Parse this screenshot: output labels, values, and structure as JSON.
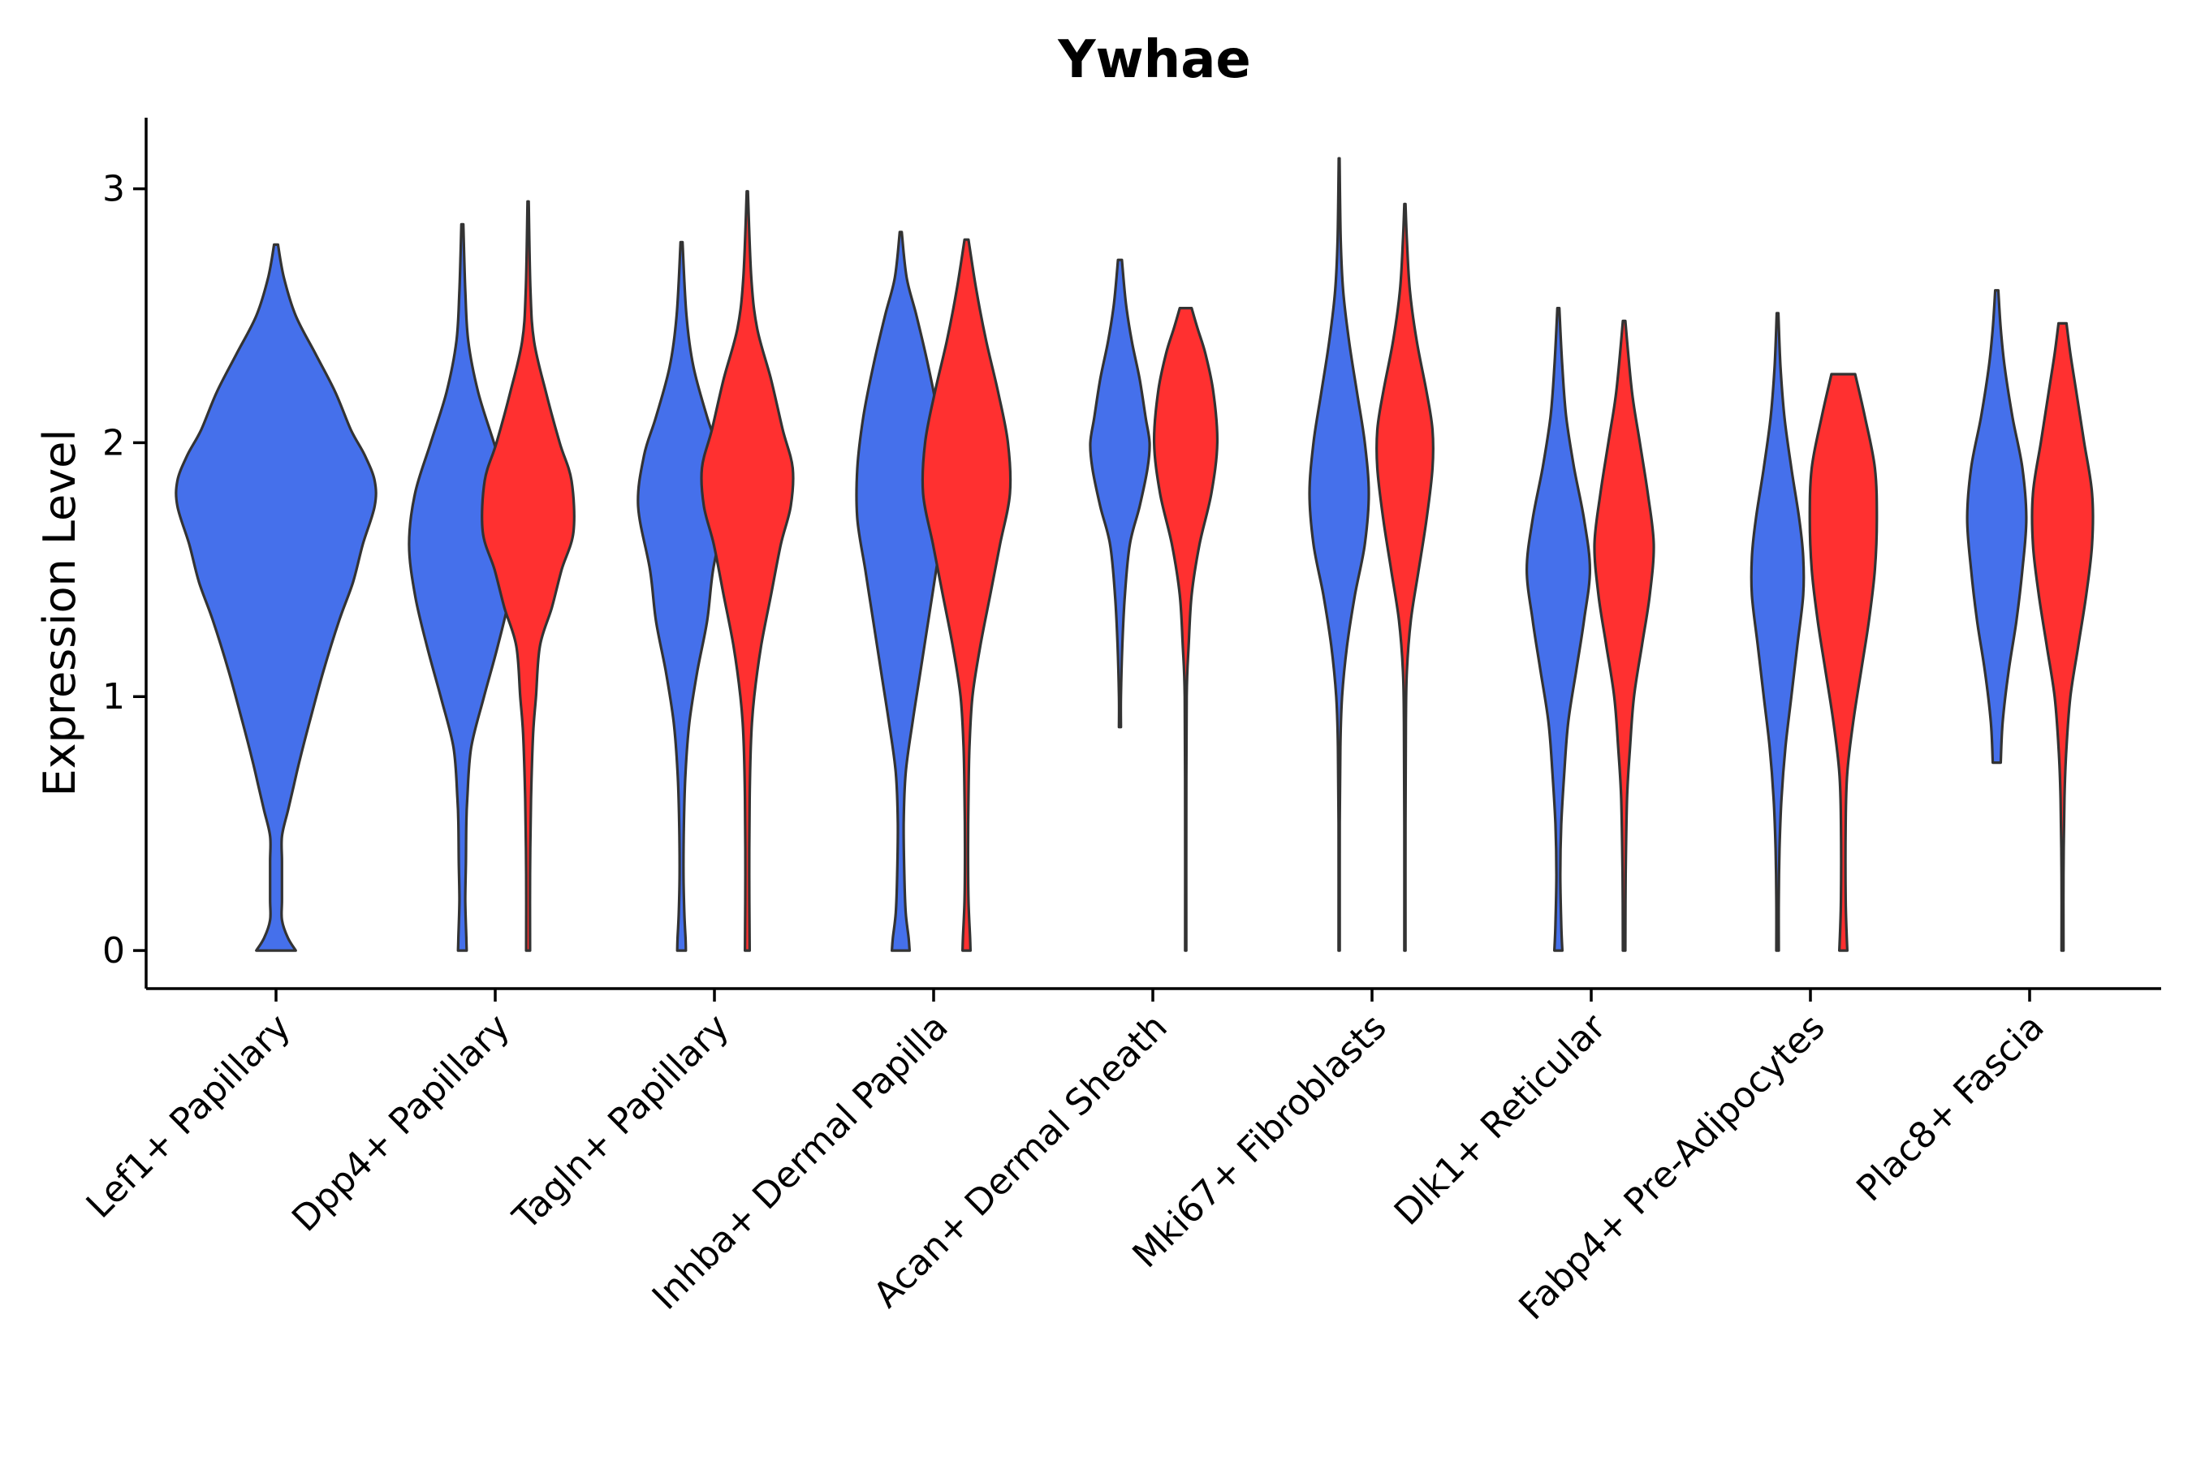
{
  "chart_data": {
    "type": "violin",
    "title": "Ywhae",
    "xlabel": "",
    "ylabel": "Expression Level",
    "ylim": [
      -0.15,
      3.28
    ],
    "yticks": [
      0,
      1,
      2,
      3
    ],
    "grid": false,
    "categories": [
      "Lef1+ Papillary",
      "Dpp4+ Papillary",
      "Tagln+ Papillary",
      "Inhba+ Dermal Papilla",
      "Acan+ Dermal Sheath",
      "Mki67+ Fibroblasts",
      "Dlk1+ Reticular",
      "Fabp4+ Pre-Adipocytes",
      "Plac8+ Fascia"
    ],
    "series_colors": {
      "blue": "#4570EB",
      "red": "#FF3030"
    },
    "outline_color": "#333333",
    "violins": [
      {
        "category": "Lef1+ Papillary",
        "color": "blue",
        "offset": 0,
        "profile": [
          [
            0.0,
            0.1
          ],
          [
            0.05,
            0.06
          ],
          [
            0.12,
            0.03
          ],
          [
            0.2,
            0.03
          ],
          [
            0.35,
            0.03
          ],
          [
            0.45,
            0.03
          ],
          [
            0.55,
            0.06
          ],
          [
            0.65,
            0.09
          ],
          [
            0.75,
            0.12
          ],
          [
            0.9,
            0.17
          ],
          [
            1.1,
            0.24
          ],
          [
            1.3,
            0.32
          ],
          [
            1.45,
            0.39
          ],
          [
            1.6,
            0.44
          ],
          [
            1.75,
            0.5
          ],
          [
            1.85,
            0.5
          ],
          [
            1.95,
            0.45
          ],
          [
            2.05,
            0.38
          ],
          [
            2.2,
            0.3
          ],
          [
            2.35,
            0.2
          ],
          [
            2.5,
            0.1
          ],
          [
            2.65,
            0.04
          ],
          [
            2.78,
            0.01
          ]
        ]
      },
      {
        "category": "Dpp4+ Papillary",
        "color": "blue",
        "offset": -0.15,
        "profile": [
          [
            0.0,
            0.022
          ],
          [
            0.05,
            0.02
          ],
          [
            0.2,
            0.015
          ],
          [
            0.35,
            0.018
          ],
          [
            0.5,
            0.02
          ],
          [
            0.6,
            0.025
          ],
          [
            0.8,
            0.045
          ],
          [
            1.0,
            0.11
          ],
          [
            1.2,
            0.18
          ],
          [
            1.4,
            0.24
          ],
          [
            1.6,
            0.27
          ],
          [
            1.8,
            0.24
          ],
          [
            2.0,
            0.16
          ],
          [
            2.2,
            0.08
          ],
          [
            2.4,
            0.03
          ],
          [
            2.6,
            0.015
          ],
          [
            2.86,
            0.005
          ]
        ]
      },
      {
        "category": "Dpp4+ Papillary",
        "color": "red",
        "offset": 0.15,
        "profile": [
          [
            0.0,
            0.01
          ],
          [
            0.3,
            0.01
          ],
          [
            0.6,
            0.015
          ],
          [
            0.85,
            0.025
          ],
          [
            1.0,
            0.04
          ],
          [
            1.2,
            0.06
          ],
          [
            1.35,
            0.12
          ],
          [
            1.5,
            0.17
          ],
          [
            1.65,
            0.23
          ],
          [
            1.85,
            0.22
          ],
          [
            2.0,
            0.16
          ],
          [
            2.2,
            0.09
          ],
          [
            2.4,
            0.03
          ],
          [
            2.6,
            0.012
          ],
          [
            2.95,
            0.003
          ]
        ]
      },
      {
        "category": "Tagln+ Papillary",
        "color": "blue",
        "offset": -0.15,
        "profile": [
          [
            0.0,
            0.022
          ],
          [
            0.05,
            0.02
          ],
          [
            0.15,
            0.014
          ],
          [
            0.3,
            0.01
          ],
          [
            0.5,
            0.012
          ],
          [
            0.7,
            0.02
          ],
          [
            0.9,
            0.04
          ],
          [
            1.1,
            0.08
          ],
          [
            1.3,
            0.13
          ],
          [
            1.5,
            0.16
          ],
          [
            1.75,
            0.22
          ],
          [
            1.95,
            0.19
          ],
          [
            2.1,
            0.13
          ],
          [
            2.3,
            0.06
          ],
          [
            2.5,
            0.025
          ],
          [
            2.79,
            0.005
          ]
        ]
      },
      {
        "category": "Tagln+ Papillary",
        "color": "red",
        "offset": 0.15,
        "profile": [
          [
            0.0,
            0.012
          ],
          [
            0.3,
            0.01
          ],
          [
            0.6,
            0.012
          ],
          [
            0.85,
            0.02
          ],
          [
            1.0,
            0.035
          ],
          [
            1.2,
            0.07
          ],
          [
            1.4,
            0.12
          ],
          [
            1.6,
            0.17
          ],
          [
            1.75,
            0.22
          ],
          [
            1.9,
            0.23
          ],
          [
            2.05,
            0.18
          ],
          [
            2.25,
            0.12
          ],
          [
            2.45,
            0.05
          ],
          [
            2.65,
            0.02
          ],
          [
            2.99,
            0.003
          ]
        ]
      },
      {
        "category": "Inhba+ Dermal Papilla",
        "color": "blue",
        "offset": -0.15,
        "profile": [
          [
            0.0,
            0.045
          ],
          [
            0.05,
            0.04
          ],
          [
            0.15,
            0.025
          ],
          [
            0.3,
            0.018
          ],
          [
            0.5,
            0.015
          ],
          [
            0.7,
            0.025
          ],
          [
            0.9,
            0.06
          ],
          [
            1.1,
            0.1
          ],
          [
            1.3,
            0.14
          ],
          [
            1.5,
            0.18
          ],
          [
            1.7,
            0.22
          ],
          [
            1.9,
            0.22
          ],
          [
            2.1,
            0.19
          ],
          [
            2.3,
            0.14
          ],
          [
            2.5,
            0.08
          ],
          [
            2.65,
            0.03
          ],
          [
            2.83,
            0.005
          ]
        ]
      },
      {
        "category": "Inhba+ Dermal Papilla",
        "color": "red",
        "offset": 0.15,
        "profile": [
          [
            0.0,
            0.02
          ],
          [
            0.05,
            0.018
          ],
          [
            0.2,
            0.01
          ],
          [
            0.4,
            0.008
          ],
          [
            0.6,
            0.01
          ],
          [
            0.8,
            0.015
          ],
          [
            1.0,
            0.03
          ],
          [
            1.2,
            0.07
          ],
          [
            1.4,
            0.12
          ],
          [
            1.6,
            0.17
          ],
          [
            1.8,
            0.22
          ],
          [
            2.0,
            0.21
          ],
          [
            2.2,
            0.16
          ],
          [
            2.4,
            0.1
          ],
          [
            2.6,
            0.05
          ],
          [
            2.8,
            0.01
          ]
        ]
      },
      {
        "category": "Acan+ Dermal Sheath",
        "color": "blue",
        "offset": -0.15,
        "profile": [
          [
            0.88,
            0.005
          ],
          [
            1.0,
            0.005
          ],
          [
            1.2,
            0.012
          ],
          [
            1.4,
            0.025
          ],
          [
            1.6,
            0.05
          ],
          [
            1.75,
            0.1
          ],
          [
            1.9,
            0.14
          ],
          [
            2.0,
            0.15
          ],
          [
            2.1,
            0.13
          ],
          [
            2.25,
            0.1
          ],
          [
            2.4,
            0.06
          ],
          [
            2.55,
            0.03
          ],
          [
            2.72,
            0.01
          ]
        ]
      },
      {
        "category": "Acan+ Dermal Sheath",
        "color": "red",
        "offset": 0.15,
        "profile": [
          [
            0.0,
            0.003
          ],
          [
            0.5,
            0.003
          ],
          [
            1.0,
            0.005
          ],
          [
            1.2,
            0.015
          ],
          [
            1.4,
            0.03
          ],
          [
            1.6,
            0.07
          ],
          [
            1.8,
            0.13
          ],
          [
            2.0,
            0.16
          ],
          [
            2.2,
            0.14
          ],
          [
            2.35,
            0.1
          ],
          [
            2.45,
            0.06
          ],
          [
            2.53,
            0.03
          ]
        ]
      },
      {
        "category": "Mki67+ Fibroblasts",
        "color": "blue",
        "offset": -0.15,
        "profile": [
          [
            0.0,
            0.003
          ],
          [
            0.5,
            0.003
          ],
          [
            0.8,
            0.006
          ],
          [
            1.0,
            0.015
          ],
          [
            1.2,
            0.04
          ],
          [
            1.4,
            0.08
          ],
          [
            1.6,
            0.13
          ],
          [
            1.8,
            0.15
          ],
          [
            2.0,
            0.13
          ],
          [
            2.2,
            0.09
          ],
          [
            2.4,
            0.05
          ],
          [
            2.6,
            0.02
          ],
          [
            2.8,
            0.008
          ],
          [
            3.12,
            0.002
          ]
        ]
      },
      {
        "category": "Mki67+ Fibroblasts",
        "color": "red",
        "offset": 0.15,
        "profile": [
          [
            0.0,
            0.003
          ],
          [
            0.5,
            0.003
          ],
          [
            0.9,
            0.005
          ],
          [
            1.1,
            0.01
          ],
          [
            1.3,
            0.03
          ],
          [
            1.5,
            0.07
          ],
          [
            1.7,
            0.11
          ],
          [
            1.9,
            0.14
          ],
          [
            2.05,
            0.14
          ],
          [
            2.2,
            0.11
          ],
          [
            2.4,
            0.06
          ],
          [
            2.6,
            0.025
          ],
          [
            2.8,
            0.01
          ],
          [
            2.94,
            0.003
          ]
        ]
      },
      {
        "category": "Dlk1+ Reticular",
        "color": "blue",
        "offset": -0.15,
        "profile": [
          [
            0.0,
            0.02
          ],
          [
            0.1,
            0.015
          ],
          [
            0.3,
            0.01
          ],
          [
            0.5,
            0.015
          ],
          [
            0.7,
            0.03
          ],
          [
            0.9,
            0.05
          ],
          [
            1.1,
            0.09
          ],
          [
            1.3,
            0.13
          ],
          [
            1.5,
            0.16
          ],
          [
            1.7,
            0.13
          ],
          [
            1.9,
            0.08
          ],
          [
            2.1,
            0.04
          ],
          [
            2.3,
            0.02
          ],
          [
            2.53,
            0.005
          ]
        ]
      },
      {
        "category": "Dlk1+ Reticular",
        "color": "red",
        "offset": 0.15,
        "profile": [
          [
            0.0,
            0.006
          ],
          [
            0.3,
            0.008
          ],
          [
            0.6,
            0.015
          ],
          [
            0.8,
            0.03
          ],
          [
            1.0,
            0.05
          ],
          [
            1.2,
            0.09
          ],
          [
            1.4,
            0.13
          ],
          [
            1.6,
            0.15
          ],
          [
            1.8,
            0.12
          ],
          [
            2.0,
            0.08
          ],
          [
            2.2,
            0.04
          ],
          [
            2.48,
            0.006
          ]
        ]
      },
      {
        "category": "Fabp4+ Pre-Adipocytes",
        "color": "blue",
        "offset": -0.15,
        "profile": [
          [
            0.0,
            0.006
          ],
          [
            0.2,
            0.006
          ],
          [
            0.4,
            0.01
          ],
          [
            0.6,
            0.02
          ],
          [
            0.8,
            0.04
          ],
          [
            1.0,
            0.07
          ],
          [
            1.2,
            0.1
          ],
          [
            1.4,
            0.13
          ],
          [
            1.55,
            0.13
          ],
          [
            1.7,
            0.11
          ],
          [
            1.9,
            0.07
          ],
          [
            2.1,
            0.035
          ],
          [
            2.3,
            0.015
          ],
          [
            2.51,
            0.004
          ]
        ]
      },
      {
        "category": "Fabp4+ Pre-Adipocytes",
        "color": "red",
        "offset": 0.15,
        "profile": [
          [
            0.0,
            0.02
          ],
          [
            0.2,
            0.012
          ],
          [
            0.5,
            0.012
          ],
          [
            0.7,
            0.02
          ],
          [
            0.9,
            0.05
          ],
          [
            1.1,
            0.09
          ],
          [
            1.3,
            0.13
          ],
          [
            1.5,
            0.16
          ],
          [
            1.7,
            0.17
          ],
          [
            1.9,
            0.16
          ],
          [
            2.1,
            0.11
          ],
          [
            2.27,
            0.06
          ]
        ]
      },
      {
        "category": "Plac8+ Fascia",
        "color": "blue",
        "offset": -0.15,
        "profile": [
          [
            0.74,
            0.02
          ],
          [
            0.9,
            0.03
          ],
          [
            1.1,
            0.06
          ],
          [
            1.3,
            0.1
          ],
          [
            1.5,
            0.13
          ],
          [
            1.7,
            0.15
          ],
          [
            1.9,
            0.13
          ],
          [
            2.1,
            0.08
          ],
          [
            2.3,
            0.04
          ],
          [
            2.45,
            0.02
          ],
          [
            2.6,
            0.008
          ]
        ]
      },
      {
        "category": "Plac8+ Fascia",
        "color": "red",
        "offset": 0.15,
        "profile": [
          [
            0.0,
            0.005
          ],
          [
            0.3,
            0.005
          ],
          [
            0.6,
            0.01
          ],
          [
            0.8,
            0.02
          ],
          [
            1.0,
            0.04
          ],
          [
            1.2,
            0.08
          ],
          [
            1.4,
            0.12
          ],
          [
            1.6,
            0.15
          ],
          [
            1.8,
            0.15
          ],
          [
            2.0,
            0.11
          ],
          [
            2.2,
            0.07
          ],
          [
            2.35,
            0.04
          ],
          [
            2.47,
            0.02
          ]
        ]
      }
    ]
  }
}
